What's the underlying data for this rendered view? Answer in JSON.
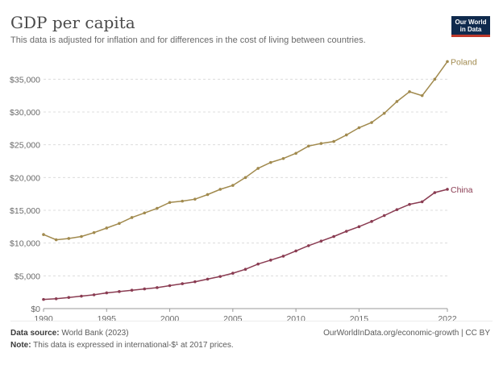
{
  "header": {
    "title": "GDP per capita",
    "subtitle": "This data is adjusted for inflation and for differences in the cost of living between countries.",
    "logo_line1": "Our World",
    "logo_line2": "in Data"
  },
  "footer": {
    "source_label": "Data source:",
    "source_text": "World Bank (2023)",
    "note_label": "Note:",
    "note_text": "This data is expressed in international-$¹ at 2017 prices.",
    "right_text": "OurWorldInData.org/economic-growth | CC BY"
  },
  "colors": {
    "poland": "#a18a4e",
    "china": "#8a3c52",
    "grid": "#dcdcdc"
  },
  "chart_data": {
    "type": "line",
    "title": "GDP per capita",
    "subtitle": "This data is adjusted for inflation and for differences in the cost of living between countries.",
    "xlabel": "",
    "ylabel": "",
    "xlim": [
      1990,
      2022
    ],
    "ylim": [
      0,
      37500
    ],
    "x_ticks": [
      1990,
      1995,
      2000,
      2005,
      2010,
      2015,
      2022
    ],
    "y_ticks": [
      0,
      5000,
      10000,
      15000,
      20000,
      25000,
      30000,
      35000
    ],
    "y_tick_labels": [
      "$0",
      "$5,000",
      "$10,000",
      "$15,000",
      "$20,000",
      "$25,000",
      "$30,000",
      "$35,000"
    ],
    "grid": "horizontal dashed",
    "x": [
      1990,
      1991,
      1992,
      1993,
      1994,
      1995,
      1996,
      1997,
      1998,
      1999,
      2000,
      2001,
      2002,
      2003,
      2004,
      2005,
      2006,
      2007,
      2008,
      2009,
      2010,
      2011,
      2012,
      2013,
      2014,
      2015,
      2016,
      2017,
      2018,
      2019,
      2020,
      2021,
      2022
    ],
    "series": [
      {
        "name": "Poland",
        "values": [
          11300,
          10500,
          10700,
          11000,
          11600,
          12300,
          13000,
          13900,
          14600,
          15300,
          16200,
          16400,
          16700,
          17400,
          18200,
          18800,
          20000,
          21400,
          22300,
          22900,
          23700,
          24800,
          25200,
          25500,
          26500,
          27600,
          28400,
          29800,
          31600,
          33100,
          32500,
          35000,
          37700
        ]
      },
      {
        "name": "China",
        "values": [
          1400,
          1500,
          1700,
          1900,
          2100,
          2400,
          2600,
          2800,
          3000,
          3200,
          3500,
          3800,
          4100,
          4500,
          4900,
          5400,
          6000,
          6800,
          7400,
          8000,
          8800,
          9600,
          10300,
          11000,
          11800,
          12500,
          13300,
          14200,
          15100,
          15900,
          16300,
          17700,
          18200
        ]
      }
    ]
  }
}
